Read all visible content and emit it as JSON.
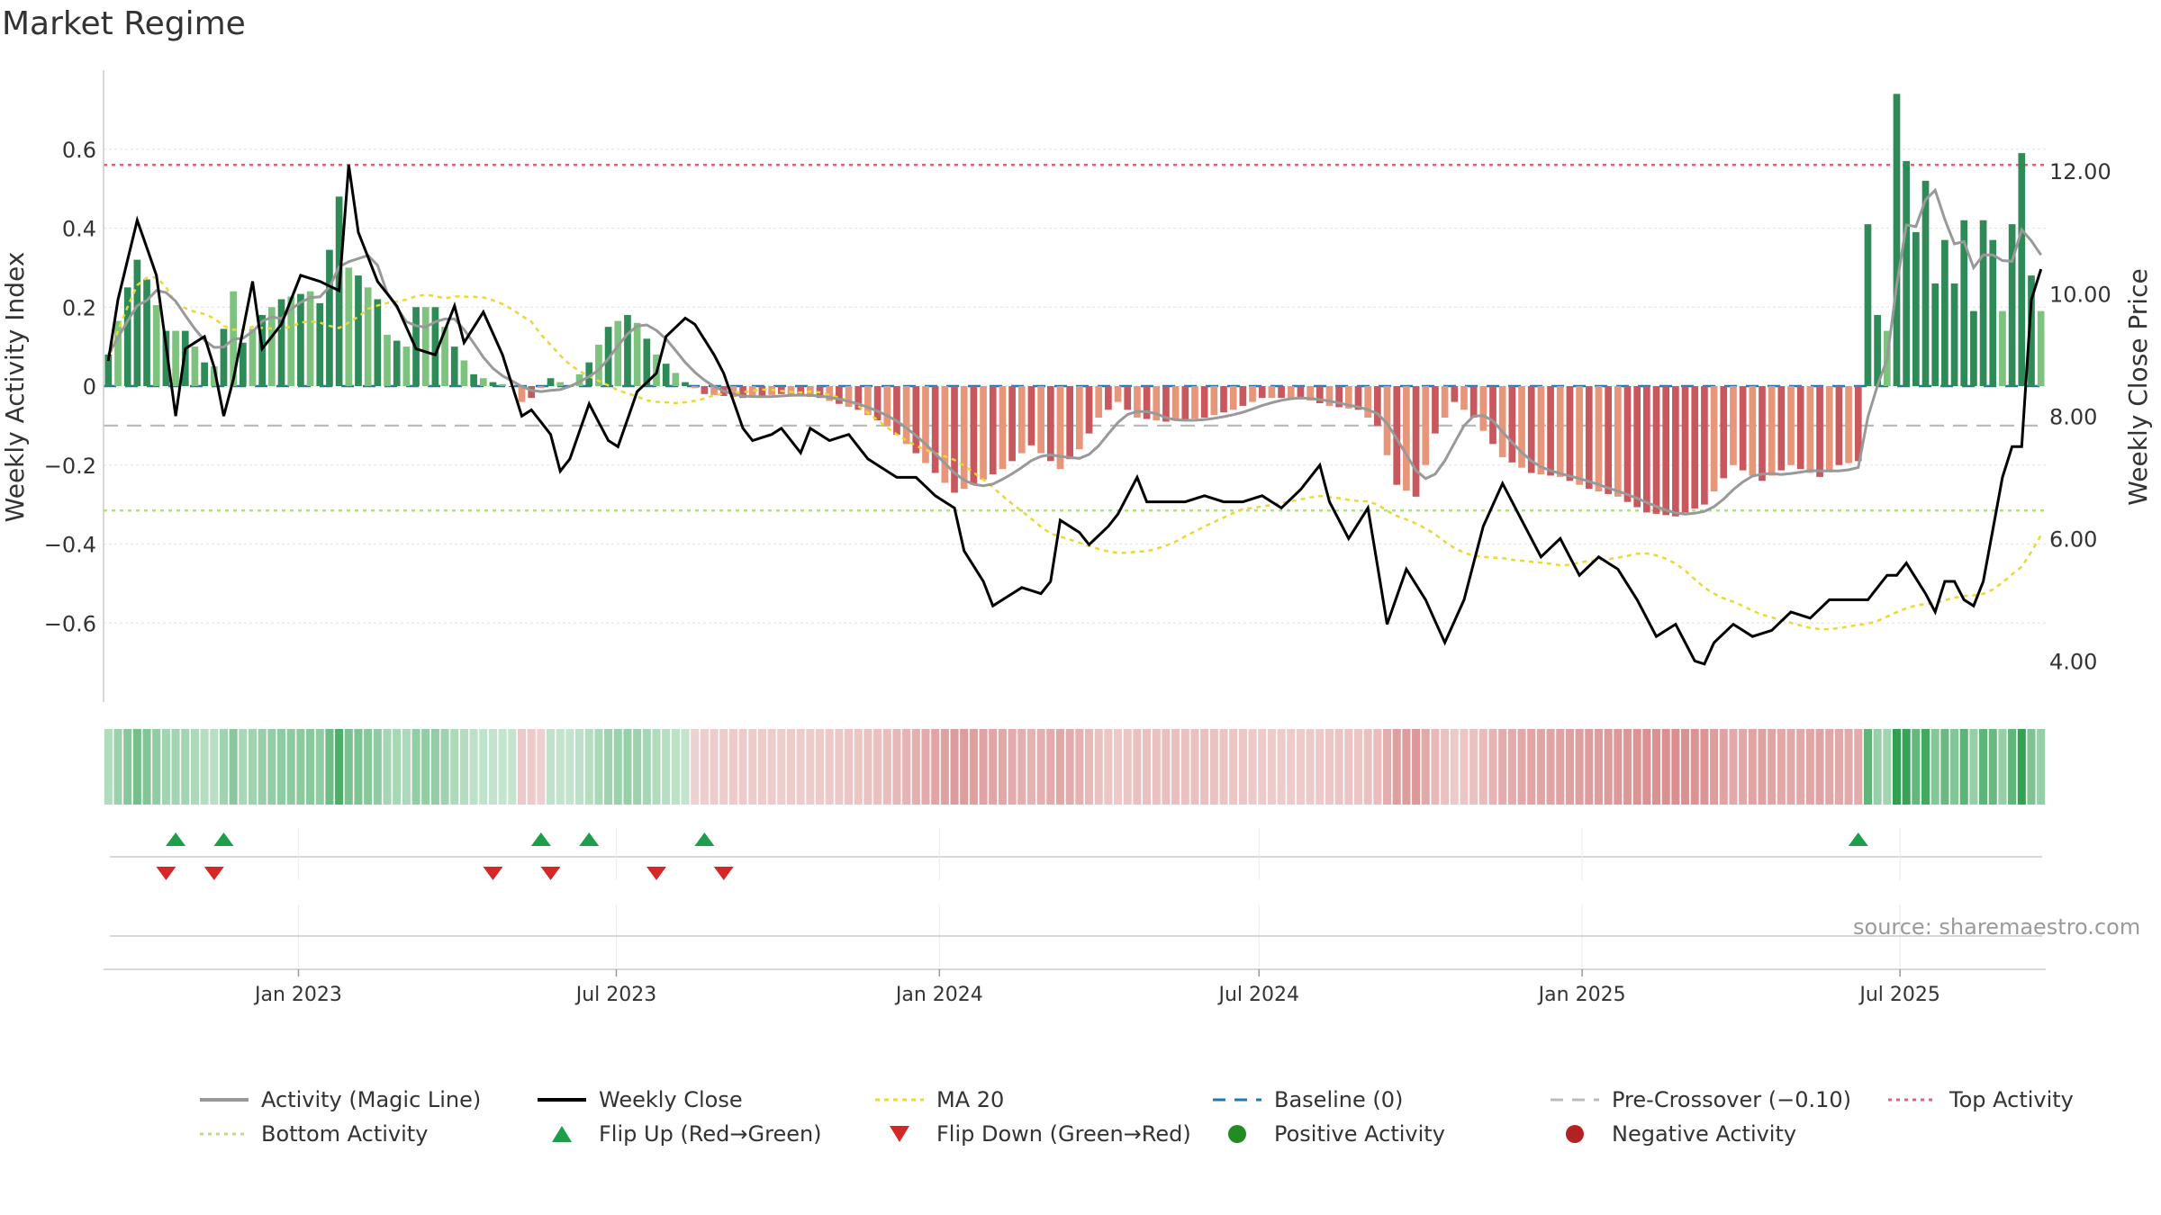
{
  "title": "Market Regime",
  "source": "source: sharemaestro.com",
  "chart_data": {
    "type": "bar+line",
    "left_axis": {
      "label": "Weekly Activity Index",
      "ticks": [
        0.6,
        0.4,
        0.2,
        0,
        -0.2,
        -0.4,
        -0.6
      ],
      "tick_labels": [
        "0.6",
        "0.4",
        "0.2",
        "0",
        "−0.2",
        "−0.4",
        "−0.6"
      ],
      "range": [
        -0.8,
        0.8
      ]
    },
    "right_axis": {
      "label": "Weekly Close Price",
      "ticks": [
        12,
        10,
        8,
        6,
        4
      ],
      "tick_labels": [
        "12.00",
        "10.00",
        "8.00",
        "6.00",
        "4.00"
      ],
      "range": [
        3.33,
        13.65
      ]
    },
    "x_axis": {
      "start": "2022-09-12",
      "end": "2025-09-22",
      "ticks": [
        "2023-01-01",
        "2023-07-01",
        "2024-01-01",
        "2024-07-01",
        "2025-01-01",
        "2025-07-01"
      ],
      "tick_labels": [
        "Jan 2023",
        "Jul 2023",
        "Jan 2024",
        "Jul 2024",
        "Jan 2025",
        "Jul 2025"
      ]
    },
    "reference_lines": {
      "baseline": 0,
      "pre_crossover": -0.1,
      "top_activity": 0.56,
      "bottom_activity": -0.315
    },
    "activity_anchors": [
      [
        0,
        0.08
      ],
      [
        2,
        0.25
      ],
      [
        3,
        0.32
      ],
      [
        4,
        0.27
      ],
      [
        6,
        0.14
      ],
      [
        8,
        0.14
      ],
      [
        10,
        0.06
      ],
      [
        11,
        0.05
      ],
      [
        13,
        0.24
      ],
      [
        14,
        0.11
      ],
      [
        16,
        0.18
      ],
      [
        18,
        0.22
      ],
      [
        21,
        0.24
      ],
      [
        22,
        0.21
      ],
      [
        24,
        0.48
      ],
      [
        25,
        0.3
      ],
      [
        26,
        0.28
      ],
      [
        28,
        0.22
      ],
      [
        29,
        0.13
      ],
      [
        31,
        0.1
      ],
      [
        32,
        0.2
      ],
      [
        34,
        0.2
      ],
      [
        36,
        0.1
      ],
      [
        38,
        0.03
      ],
      [
        40,
        0.01
      ],
      [
        42,
        0
      ],
      [
        43,
        -0.04
      ],
      [
        44,
        -0.03
      ],
      [
        46,
        0.02
      ],
      [
        47,
        0.01
      ],
      [
        48,
        0
      ],
      [
        50,
        0.06
      ],
      [
        52,
        0.15
      ],
      [
        54,
        0.18
      ],
      [
        55,
        0.16
      ],
      [
        57,
        0.08
      ],
      [
        60,
        0.01
      ],
      [
        62,
        -0.02
      ],
      [
        66,
        -0.03
      ],
      [
        70,
        -0.02
      ],
      [
        74,
        -0.03
      ],
      [
        78,
        -0.06
      ],
      [
        81,
        -0.1
      ],
      [
        84,
        -0.17
      ],
      [
        86,
        -0.22
      ],
      [
        88,
        -0.27
      ],
      [
        90,
        -0.25
      ],
      [
        93,
        -0.21
      ],
      [
        96,
        -0.15
      ],
      [
        98,
        -0.19
      ],
      [
        99,
        -0.21
      ],
      [
        101,
        -0.16
      ],
      [
        103,
        -0.08
      ],
      [
        105,
        -0.04
      ],
      [
        107,
        -0.08
      ],
      [
        110,
        -0.09
      ],
      [
        114,
        -0.08
      ],
      [
        117,
        -0.06
      ],
      [
        120,
        -0.03
      ],
      [
        124,
        -0.03
      ],
      [
        127,
        -0.05
      ],
      [
        130,
        -0.06
      ],
      [
        132,
        -0.1
      ],
      [
        134,
        -0.25
      ],
      [
        136,
        -0.28
      ],
      [
        138,
        -0.12
      ],
      [
        140,
        -0.04
      ],
      [
        142,
        -0.08
      ],
      [
        145,
        -0.18
      ],
      [
        148,
        -0.22
      ],
      [
        151,
        -0.23
      ],
      [
        154,
        -0.26
      ],
      [
        157,
        -0.28
      ],
      [
        160,
        -0.32
      ],
      [
        163,
        -0.33
      ],
      [
        166,
        -0.3
      ],
      [
        169,
        -0.2
      ],
      [
        172,
        -0.24
      ],
      [
        175,
        -0.2
      ],
      [
        178,
        -0.23
      ],
      [
        180,
        -0.2
      ],
      [
        182,
        -0.19
      ],
      [
        183,
        0.41
      ],
      [
        184,
        0.18
      ],
      [
        185,
        0.14
      ],
      [
        186,
        0.74
      ],
      [
        187,
        0.57
      ],
      [
        188,
        0.39
      ],
      [
        189,
        0.52
      ],
      [
        190,
        0.26
      ],
      [
        191,
        0.37
      ],
      [
        192,
        0.26
      ],
      [
        193,
        0.42
      ],
      [
        194,
        0.19
      ],
      [
        195,
        0.42
      ],
      [
        196,
        0.37
      ],
      [
        197,
        0.19
      ],
      [
        198,
        0.41
      ],
      [
        199,
        0.59
      ],
      [
        200,
        0.28
      ],
      [
        201,
        0.19
      ]
    ],
    "close_anchors": [
      [
        0,
        8.9
      ],
      [
        1,
        9.9
      ],
      [
        3,
        11.2
      ],
      [
        5,
        10.3
      ],
      [
        7,
        8.0
      ],
      [
        8,
        9.1
      ],
      [
        10,
        9.3
      ],
      [
        11,
        8.8
      ],
      [
        12,
        8.0
      ],
      [
        13,
        8.6
      ],
      [
        15,
        10.2
      ],
      [
        16,
        9.1
      ],
      [
        18,
        9.5
      ],
      [
        20,
        10.3
      ],
      [
        22,
        10.2
      ],
      [
        24,
        10.05
      ],
      [
        25,
        12.1
      ],
      [
        26,
        11.0
      ],
      [
        28,
        10.2
      ],
      [
        30,
        9.8
      ],
      [
        32,
        9.1
      ],
      [
        34,
        9.0
      ],
      [
        36,
        9.8
      ],
      [
        37,
        9.2
      ],
      [
        39,
        9.7
      ],
      [
        41,
        9.0
      ],
      [
        43,
        8.0
      ],
      [
        44,
        8.1
      ],
      [
        46,
        7.7
      ],
      [
        47,
        7.1
      ],
      [
        48,
        7.3
      ],
      [
        50,
        8.2
      ],
      [
        52,
        7.6
      ],
      [
        53,
        7.5
      ],
      [
        55,
        8.4
      ],
      [
        57,
        8.7
      ],
      [
        58,
        9.3
      ],
      [
        60,
        9.6
      ],
      [
        61,
        9.5
      ],
      [
        63,
        9.0
      ],
      [
        64,
        8.7
      ],
      [
        66,
        7.8
      ],
      [
        67,
        7.6
      ],
      [
        69,
        7.7
      ],
      [
        70,
        7.8
      ],
      [
        72,
        7.4
      ],
      [
        73,
        7.8
      ],
      [
        75,
        7.6
      ],
      [
        77,
        7.7
      ],
      [
        79,
        7.3
      ],
      [
        80,
        7.2
      ],
      [
        82,
        7.0
      ],
      [
        84,
        7.0
      ],
      [
        86,
        6.7
      ],
      [
        88,
        6.5
      ],
      [
        89,
        5.8
      ],
      [
        91,
        5.3
      ],
      [
        92,
        4.9
      ],
      [
        95,
        5.2
      ],
      [
        97,
        5.1
      ],
      [
        98,
        5.3
      ],
      [
        99,
        6.3
      ],
      [
        101,
        6.1
      ],
      [
        102,
        5.9
      ],
      [
        104,
        6.2
      ],
      [
        105,
        6.4
      ],
      [
        107,
        7.0
      ],
      [
        108,
        6.6
      ],
      [
        110,
        6.6
      ],
      [
        112,
        6.6
      ],
      [
        114,
        6.7
      ],
      [
        116,
        6.6
      ],
      [
        118,
        6.6
      ],
      [
        120,
        6.7
      ],
      [
        122,
        6.5
      ],
      [
        124,
        6.8
      ],
      [
        126,
        7.2
      ],
      [
        127,
        6.6
      ],
      [
        129,
        6.0
      ],
      [
        131,
        6.5
      ],
      [
        133,
        4.6
      ],
      [
        135,
        5.5
      ],
      [
        137,
        5.0
      ],
      [
        139,
        4.3
      ],
      [
        141,
        5.0
      ],
      [
        143,
        6.2
      ],
      [
        145,
        6.9
      ],
      [
        147,
        6.3
      ],
      [
        149,
        5.7
      ],
      [
        151,
        6.0
      ],
      [
        153,
        5.4
      ],
      [
        155,
        5.7
      ],
      [
        157,
        5.5
      ],
      [
        159,
        5.0
      ],
      [
        161,
        4.4
      ],
      [
        163,
        4.6
      ],
      [
        165,
        4.0
      ],
      [
        166,
        3.95
      ],
      [
        167,
        4.3
      ],
      [
        169,
        4.6
      ],
      [
        171,
        4.4
      ],
      [
        173,
        4.5
      ],
      [
        175,
        4.8
      ],
      [
        177,
        4.7
      ],
      [
        179,
        5.0
      ],
      [
        181,
        5.0
      ],
      [
        183,
        5.0
      ],
      [
        185,
        5.4
      ],
      [
        186,
        5.4
      ],
      [
        187,
        5.6
      ],
      [
        189,
        5.1
      ],
      [
        190,
        4.8
      ],
      [
        191,
        5.3
      ],
      [
        192,
        5.3
      ],
      [
        193,
        5.0
      ],
      [
        194,
        4.9
      ],
      [
        195,
        5.3
      ],
      [
        197,
        7.0
      ],
      [
        198,
        7.5
      ],
      [
        199,
        7.5
      ],
      [
        200,
        9.9
      ],
      [
        201,
        10.4
      ]
    ],
    "flips_up_weeks": [
      7,
      12,
      45,
      50,
      62,
      182
    ],
    "flips_down_weeks": [
      6,
      11,
      40,
      46,
      57,
      64
    ]
  },
  "legend": [
    {
      "key": "activity",
      "label": "Activity (Magic Line)"
    },
    {
      "key": "close",
      "label": "Weekly Close"
    },
    {
      "key": "ma20",
      "label": "MA 20"
    },
    {
      "key": "baseline",
      "label": "Baseline (0)"
    },
    {
      "key": "precross",
      "label": "Pre-Crossover (−0.10)"
    },
    {
      "key": "top",
      "label": "Top Activity"
    },
    {
      "key": "bottom",
      "label": "Bottom Activity"
    },
    {
      "key": "flipup",
      "label": "Flip Up (Red→Green)"
    },
    {
      "key": "flipdown",
      "label": "Flip Down (Green→Red)"
    },
    {
      "key": "pos",
      "label": "Positive Activity"
    },
    {
      "key": "neg",
      "label": "Negative Activity"
    }
  ],
  "colors": {
    "strong_green": "#2e8b57",
    "light_green": "#7dc27d",
    "strong_red": "#c9585e",
    "light_red": "#e8967a",
    "magic_line": "#999999",
    "close": "#000000",
    "ma20": "#e8d838",
    "baseline": "#1f77b4",
    "precross": "#bbbbbb",
    "top": "#e0607e",
    "bottom": "#b5de8c",
    "flip_up": "#1e9e4a",
    "flip_down": "#d62728",
    "pos_dot": "#228b22",
    "neg_dot": "#b22222"
  }
}
